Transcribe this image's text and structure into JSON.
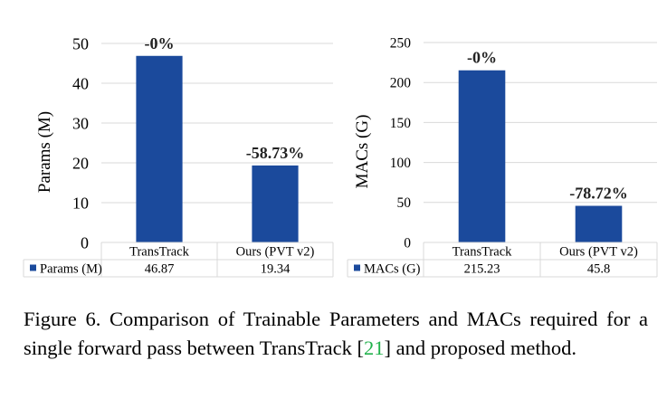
{
  "colors": {
    "bar": "#1b4a9c",
    "grid": "#d9d9d9",
    "cite": "#22b14c"
  },
  "chart_data": [
    {
      "type": "bar",
      "title": "",
      "ylabel": "Params (M)",
      "xlabel": "",
      "ylim": [
        0,
        50
      ],
      "yticks": [
        0,
        10,
        20,
        30,
        40,
        50
      ],
      "grid": true,
      "categories": [
        "TransTrack",
        "Ours (PVT v2)"
      ],
      "series": [
        {
          "name": "Params (M)",
          "values": [
            46.87,
            19.34
          ]
        }
      ],
      "table_values": [
        "46.87",
        "19.34"
      ],
      "annotations": [
        "-0%",
        "-58.73%"
      ]
    },
    {
      "type": "bar",
      "title": "",
      "ylabel": "MACs (G)",
      "xlabel": "",
      "ylim": [
        0,
        250
      ],
      "yticks": [
        0,
        50,
        100,
        150,
        200,
        250
      ],
      "grid": true,
      "categories": [
        "TransTrack",
        "Ours (PVT v2)"
      ],
      "series": [
        {
          "name": "MACs (G)",
          "values": [
            215.23,
            45.8
          ]
        }
      ],
      "table_values": [
        "215.23",
        "45.8"
      ],
      "annotations": [
        "-0%",
        "-78.72%"
      ]
    }
  ],
  "caption": {
    "label": "Figure 6.",
    "text_before": " Comparison of Trainable Parameters and MACs required for a single forward pass between TransTrack [",
    "cite": "21",
    "text_after": "] and proposed method."
  }
}
